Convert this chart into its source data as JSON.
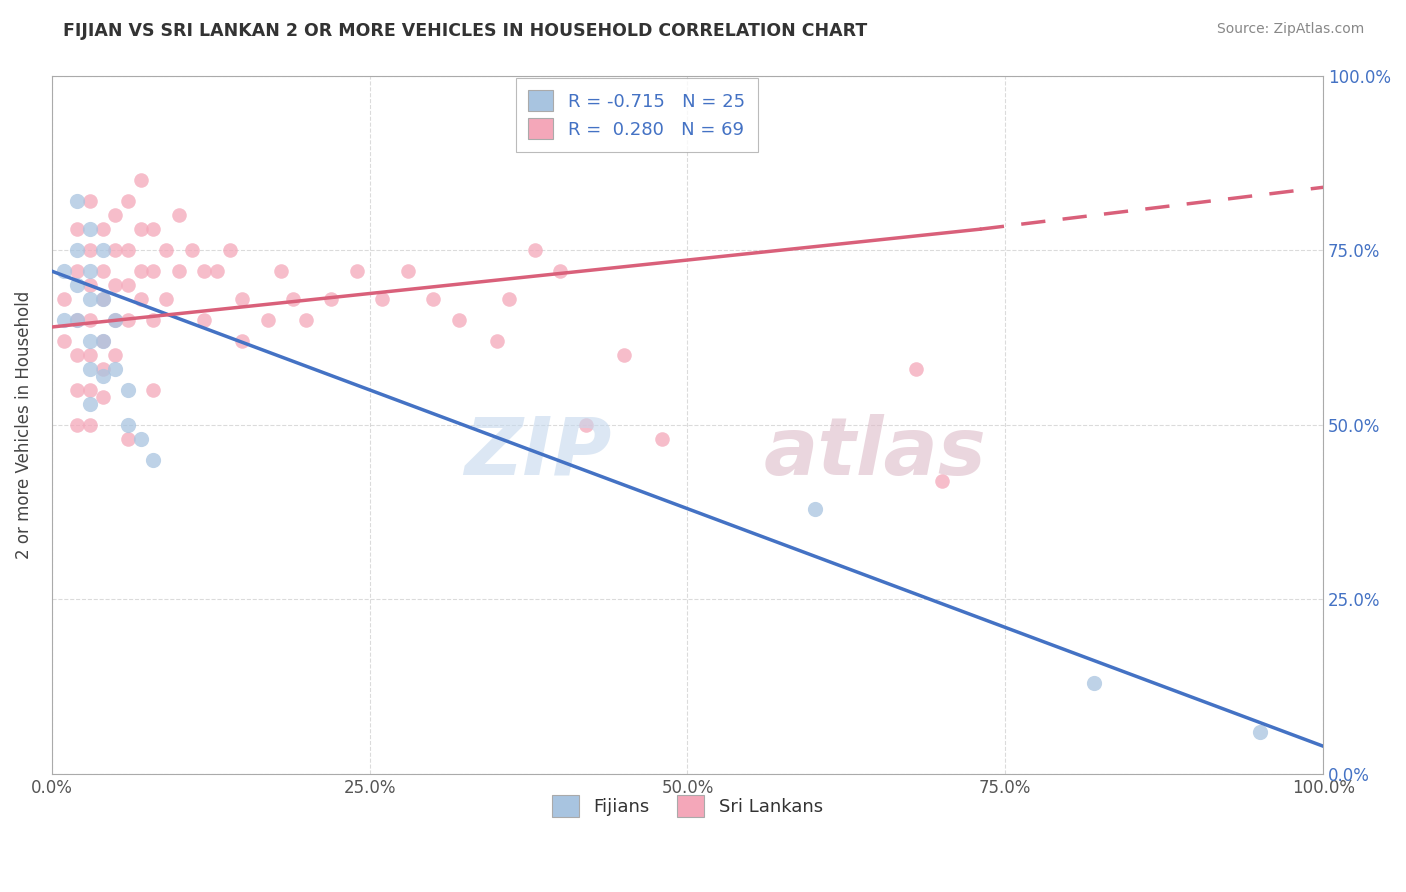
{
  "title": "FIJIAN VS SRI LANKAN 2 OR MORE VEHICLES IN HOUSEHOLD CORRELATION CHART",
  "source": "Source: ZipAtlas.com",
  "ylabel": "2 or more Vehicles in Household",
  "xlim": [
    0.0,
    1.0
  ],
  "ylim": [
    0.0,
    1.0
  ],
  "fijian_R": -0.715,
  "fijian_N": 25,
  "srilankan_R": 0.28,
  "srilankan_N": 69,
  "fijian_color": "#a8c4e0",
  "srilankan_color": "#f4a7b9",
  "fijian_line_color": "#4472c4",
  "srilankan_line_color": "#d9607a",
  "fijian_points": [
    [
      0.01,
      0.72
    ],
    [
      0.01,
      0.65
    ],
    [
      0.02,
      0.82
    ],
    [
      0.02,
      0.75
    ],
    [
      0.02,
      0.7
    ],
    [
      0.02,
      0.65
    ],
    [
      0.03,
      0.78
    ],
    [
      0.03,
      0.72
    ],
    [
      0.03,
      0.68
    ],
    [
      0.03,
      0.62
    ],
    [
      0.03,
      0.58
    ],
    [
      0.03,
      0.53
    ],
    [
      0.04,
      0.75
    ],
    [
      0.04,
      0.68
    ],
    [
      0.04,
      0.62
    ],
    [
      0.04,
      0.57
    ],
    [
      0.05,
      0.65
    ],
    [
      0.05,
      0.58
    ],
    [
      0.06,
      0.55
    ],
    [
      0.06,
      0.5
    ],
    [
      0.07,
      0.48
    ],
    [
      0.08,
      0.45
    ],
    [
      0.6,
      0.38
    ],
    [
      0.82,
      0.13
    ],
    [
      0.95,
      0.06
    ]
  ],
  "srilankan_points": [
    [
      0.01,
      0.68
    ],
    [
      0.01,
      0.62
    ],
    [
      0.02,
      0.78
    ],
    [
      0.02,
      0.72
    ],
    [
      0.02,
      0.65
    ],
    [
      0.02,
      0.6
    ],
    [
      0.02,
      0.55
    ],
    [
      0.02,
      0.5
    ],
    [
      0.03,
      0.82
    ],
    [
      0.03,
      0.75
    ],
    [
      0.03,
      0.7
    ],
    [
      0.03,
      0.65
    ],
    [
      0.03,
      0.6
    ],
    [
      0.03,
      0.55
    ],
    [
      0.03,
      0.5
    ],
    [
      0.04,
      0.78
    ],
    [
      0.04,
      0.72
    ],
    [
      0.04,
      0.68
    ],
    [
      0.04,
      0.62
    ],
    [
      0.04,
      0.58
    ],
    [
      0.04,
      0.54
    ],
    [
      0.05,
      0.8
    ],
    [
      0.05,
      0.75
    ],
    [
      0.05,
      0.7
    ],
    [
      0.05,
      0.65
    ],
    [
      0.05,
      0.6
    ],
    [
      0.06,
      0.82
    ],
    [
      0.06,
      0.75
    ],
    [
      0.06,
      0.7
    ],
    [
      0.06,
      0.65
    ],
    [
      0.07,
      0.85
    ],
    [
      0.07,
      0.78
    ],
    [
      0.07,
      0.72
    ],
    [
      0.07,
      0.68
    ],
    [
      0.08,
      0.78
    ],
    [
      0.08,
      0.72
    ],
    [
      0.08,
      0.65
    ],
    [
      0.09,
      0.75
    ],
    [
      0.09,
      0.68
    ],
    [
      0.1,
      0.8
    ],
    [
      0.1,
      0.72
    ],
    [
      0.11,
      0.75
    ],
    [
      0.12,
      0.72
    ],
    [
      0.12,
      0.65
    ],
    [
      0.13,
      0.72
    ],
    [
      0.14,
      0.75
    ],
    [
      0.15,
      0.68
    ],
    [
      0.15,
      0.62
    ],
    [
      0.17,
      0.65
    ],
    [
      0.18,
      0.72
    ],
    [
      0.19,
      0.68
    ],
    [
      0.2,
      0.65
    ],
    [
      0.22,
      0.68
    ],
    [
      0.24,
      0.72
    ],
    [
      0.26,
      0.68
    ],
    [
      0.28,
      0.72
    ],
    [
      0.3,
      0.68
    ],
    [
      0.32,
      0.65
    ],
    [
      0.35,
      0.62
    ],
    [
      0.36,
      0.68
    ],
    [
      0.38,
      0.75
    ],
    [
      0.4,
      0.72
    ],
    [
      0.42,
      0.5
    ],
    [
      0.45,
      0.6
    ],
    [
      0.48,
      0.48
    ],
    [
      0.68,
      0.58
    ],
    [
      0.7,
      0.42
    ],
    [
      0.08,
      0.55
    ],
    [
      0.06,
      0.48
    ]
  ],
  "fijian_line": {
    "x0": 0.0,
    "y0": 0.72,
    "x1": 1.0,
    "y1": 0.04
  },
  "srilankan_line_solid": {
    "x0": 0.0,
    "y0": 0.64,
    "x1": 0.73,
    "y1": 0.78
  },
  "srilankan_line_dash": {
    "x0": 0.73,
    "y0": 0.78,
    "x1": 1.0,
    "y1": 0.84
  }
}
